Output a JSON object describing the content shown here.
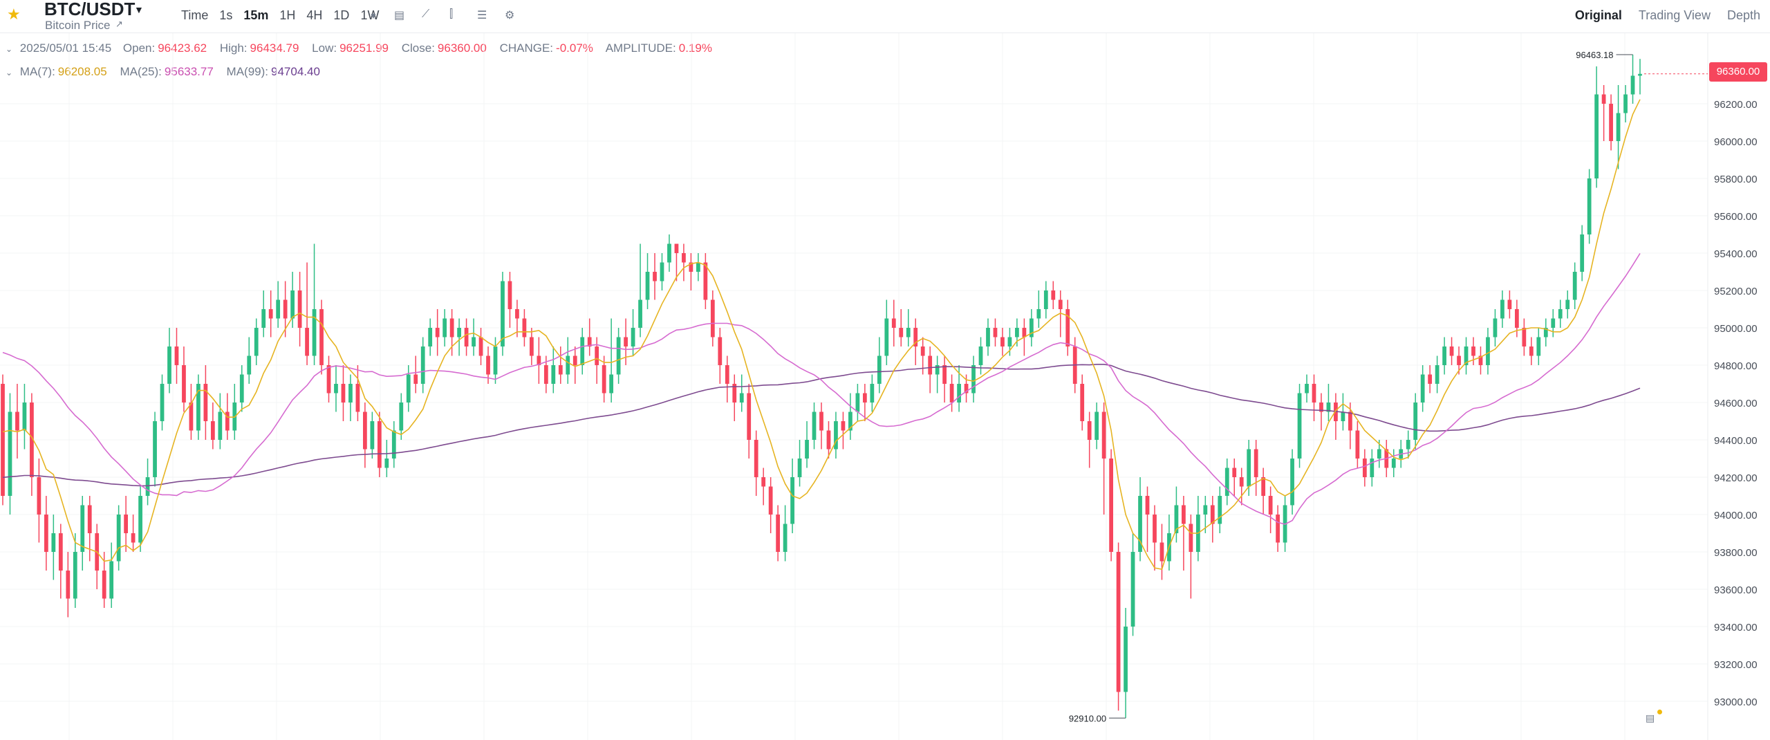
{
  "header": {
    "pair": "BTC/USDT",
    "subtitle": "Bitcoin Price",
    "intervals": [
      "Time",
      "1s",
      "15m",
      "1H",
      "4H",
      "1D",
      "1W"
    ],
    "active_interval": "15m",
    "views": [
      "Original",
      "Trading View",
      "Depth"
    ],
    "active_view": "Original"
  },
  "ohlc": {
    "date": "2025/05/01 15:45",
    "open_label": "Open:",
    "open": "96423.62",
    "high_label": "High:",
    "high": "96434.79",
    "low_label": "Low:",
    "low": "96251.99",
    "close_label": "Close:",
    "close": "96360.00",
    "change_label": "CHANGE:",
    "change": "-0.07%",
    "amplitude_label": "AMPLITUDE:",
    "amplitude": "0.19%"
  },
  "ma": {
    "ma7_label": "MA(7):",
    "ma7": "96208.05",
    "ma25_label": "MA(25):",
    "ma25": "95633.77",
    "ma99_label": "MA(99):",
    "ma99": "94704.40"
  },
  "colors": {
    "up": "#2ebd85",
    "down": "#f6465d",
    "ma7": "#e6b422",
    "ma25": "#d66bd0",
    "ma99": "#7d4a8f",
    "grid": "#f3f4f6"
  },
  "chart_data": {
    "type": "candlestick",
    "y_axis_ticks": [
      "96200.00",
      "96000.00",
      "95800.00",
      "95600.00",
      "95400.00",
      "95200.00",
      "95000.00",
      "94800.00",
      "94600.00",
      "94400.00",
      "94200.00",
      "94000.00",
      "93800.00",
      "93600.00",
      "93400.00",
      "93200.00",
      "93000.00"
    ],
    "ylim": [
      92860,
      96560
    ],
    "current_price": "96360.00",
    "high_marker": "96463.18",
    "low_marker": "92910.00",
    "candles": [
      [
        94700,
        94100,
        94750,
        94050
      ],
      [
        94100,
        94550,
        94650,
        94000
      ],
      [
        94550,
        94450,
        94700,
        94300
      ],
      [
        94450,
        94600,
        94700,
        94350
      ],
      [
        94600,
        94200,
        94650,
        94100
      ],
      [
        94200,
        94000,
        94300,
        93850
      ],
      [
        94000,
        93800,
        94100,
        93700
      ],
      [
        93800,
        93900,
        94000,
        93650
      ],
      [
        93900,
        93700,
        93950,
        93550
      ],
      [
        93700,
        93550,
        93800,
        93450
      ],
      [
        93550,
        93800,
        93900,
        93500
      ],
      [
        93800,
        94050,
        94100,
        93700
      ],
      [
        94050,
        93900,
        94100,
        93750
      ],
      [
        93900,
        93700,
        93950,
        93600
      ],
      [
        93700,
        93550,
        93800,
        93500
      ],
      [
        93550,
        93750,
        93850,
        93500
      ],
      [
        93750,
        94000,
        94050,
        93700
      ],
      [
        94000,
        93900,
        94100,
        93800
      ],
      [
        93900,
        93850,
        94000,
        93800
      ],
      [
        93850,
        94100,
        94150,
        93800
      ],
      [
        94100,
        94200,
        94300,
        94050
      ],
      [
        94200,
        94500,
        94550,
        94150
      ],
      [
        94500,
        94700,
        94750,
        94450
      ],
      [
        94700,
        94900,
        95000,
        94650
      ],
      [
        94900,
        94800,
        95000,
        94700
      ],
      [
        94800,
        94600,
        94900,
        94550
      ],
      [
        94600,
        94450,
        94700,
        94400
      ],
      [
        94450,
        94700,
        94750,
        94400
      ],
      [
        94700,
        94500,
        94800,
        94400
      ],
      [
        94500,
        94400,
        94600,
        94350
      ],
      [
        94400,
        94550,
        94650,
        94350
      ],
      [
        94550,
        94450,
        94650,
        94400
      ],
      [
        94450,
        94600,
        94700,
        94400
      ],
      [
        94600,
        94750,
        94800,
        94550
      ],
      [
        94750,
        94850,
        94950,
        94700
      ],
      [
        94850,
        95000,
        95050,
        94800
      ],
      [
        95000,
        95100,
        95200,
        94950
      ],
      [
        95100,
        95050,
        95200,
        94950
      ],
      [
        95050,
        95150,
        95250,
        95000
      ],
      [
        95150,
        95050,
        95250,
        94950
      ],
      [
        95050,
        95200,
        95300,
        95000
      ],
      [
        95200,
        95000,
        95300,
        94900
      ],
      [
        95000,
        94850,
        95350,
        94800
      ],
      [
        94850,
        95100,
        95450,
        94800
      ],
      [
        95100,
        94800,
        95150,
        94750
      ],
      [
        94800,
        94650,
        94850,
        94600
      ],
      [
        94650,
        94700,
        94800,
        94550
      ],
      [
        94700,
        94600,
        94800,
        94500
      ],
      [
        94600,
        94700,
        94750,
        94500
      ],
      [
        94700,
        94550,
        94800,
        94500
      ],
      [
        94550,
        94350,
        94600,
        94250
      ],
      [
        94350,
        94500,
        94550,
        94300
      ],
      [
        94500,
        94250,
        94550,
        94200
      ],
      [
        94250,
        94300,
        94400,
        94200
      ],
      [
        94300,
        94450,
        94500,
        94250
      ],
      [
        94450,
        94600,
        94650,
        94400
      ],
      [
        94600,
        94750,
        94800,
        94550
      ],
      [
        94750,
        94700,
        94850,
        94650
      ],
      [
        94700,
        94900,
        94950,
        94650
      ],
      [
        94900,
        95000,
        95050,
        94850
      ],
      [
        95000,
        94950,
        95100,
        94850
      ],
      [
        94950,
        95050,
        95100,
        94900
      ],
      [
        95050,
        94950,
        95100,
        94850
      ],
      [
        94950,
        95000,
        95050,
        94850
      ],
      [
        95000,
        94900,
        95050,
        94850
      ],
      [
        94900,
        94950,
        95050,
        94850
      ],
      [
        94950,
        94850,
        95000,
        94800
      ],
      [
        94850,
        94750,
        94900,
        94700
      ],
      [
        94750,
        94900,
        94950,
        94700
      ],
      [
        94900,
        95250,
        95300,
        94850
      ],
      [
        95250,
        95100,
        95300,
        95000
      ],
      [
        95100,
        95050,
        95150,
        94950
      ],
      [
        95050,
        94950,
        95100,
        94900
      ],
      [
        94950,
        94850,
        95000,
        94800
      ],
      [
        94850,
        94800,
        94950,
        94700
      ],
      [
        94800,
        94700,
        94850,
        94650
      ],
      [
        94700,
        94800,
        94900,
        94650
      ],
      [
        94800,
        94750,
        94900,
        94700
      ],
      [
        94750,
        94850,
        94950,
        94700
      ],
      [
        94850,
        94800,
        94900,
        94700
      ],
      [
        94800,
        94950,
        95000,
        94750
      ],
      [
        94950,
        94900,
        95050,
        94850
      ],
      [
        94900,
        94800,
        94950,
        94700
      ],
      [
        94800,
        94650,
        94850,
        94600
      ],
      [
        94650,
        94750,
        95050,
        94600
      ],
      [
        94750,
        94950,
        95000,
        94700
      ],
      [
        94950,
        94900,
        95050,
        94800
      ],
      [
        94900,
        95000,
        95100,
        94850
      ],
      [
        95000,
        95150,
        95450,
        94950
      ],
      [
        95150,
        95300,
        95400,
        95100
      ],
      [
        95300,
        95250,
        95400,
        95150
      ],
      [
        95250,
        95350,
        95400,
        95200
      ],
      [
        95350,
        95450,
        95500,
        95300
      ],
      [
        95450,
        95400,
        95450,
        95250
      ],
      [
        95400,
        95350,
        95450,
        95250
      ],
      [
        95350,
        95300,
        95400,
        95200
      ],
      [
        95300,
        95350,
        95400,
        95250
      ],
      [
        95350,
        95150,
        95400,
        95100
      ],
      [
        95150,
        94950,
        95200,
        94900
      ],
      [
        94950,
        94800,
        95000,
        94700
      ],
      [
        94800,
        94700,
        94850,
        94600
      ],
      [
        94700,
        94600,
        94750,
        94500
      ],
      [
        94600,
        94650,
        94750,
        94550
      ],
      [
        94650,
        94400,
        94700,
        94300
      ],
      [
        94400,
        94200,
        94450,
        94100
      ],
      [
        94200,
        94150,
        94250,
        94050
      ],
      [
        94150,
        94000,
        94200,
        93900
      ],
      [
        94000,
        93800,
        94050,
        93750
      ],
      [
        93800,
        93950,
        94050,
        93750
      ],
      [
        93950,
        94200,
        94300,
        93900
      ],
      [
        94200,
        94300,
        94400,
        94150
      ],
      [
        94300,
        94400,
        94500,
        94250
      ],
      [
        94400,
        94550,
        94600,
        94350
      ],
      [
        94550,
        94450,
        94600,
        94350
      ],
      [
        94450,
        94350,
        94500,
        94300
      ],
      [
        94350,
        94500,
        94550,
        94300
      ],
      [
        94500,
        94450,
        94550,
        94350
      ],
      [
        94450,
        94550,
        94650,
        94400
      ],
      [
        94550,
        94650,
        94700,
        94500
      ],
      [
        94650,
        94600,
        94700,
        94500
      ],
      [
        94600,
        94700,
        94750,
        94550
      ],
      [
        94700,
        94850,
        94950,
        94650
      ],
      [
        94850,
        95050,
        95150,
        94800
      ],
      [
        95050,
        95000,
        95150,
        94900
      ],
      [
        95000,
        94950,
        95100,
        94900
      ],
      [
        94950,
        95000,
        95100,
        94900
      ],
      [
        95000,
        94900,
        95050,
        94800
      ],
      [
        94900,
        94850,
        94950,
        94750
      ],
      [
        94850,
        94750,
        94900,
        94650
      ],
      [
        94750,
        94800,
        94850,
        94650
      ],
      [
        94800,
        94700,
        94850,
        94600
      ],
      [
        94700,
        94600,
        94750,
        94550
      ],
      [
        94600,
        94700,
        94800,
        94550
      ],
      [
        94700,
        94650,
        94750,
        94600
      ],
      [
        94650,
        94800,
        94850,
        94600
      ],
      [
        94800,
        94900,
        94950,
        94750
      ],
      [
        94900,
        95000,
        95050,
        94850
      ],
      [
        95000,
        94950,
        95050,
        94900
      ],
      [
        94950,
        94900,
        95000,
        94850
      ],
      [
        94900,
        94950,
        95000,
        94850
      ],
      [
        94950,
        95000,
        95050,
        94900
      ],
      [
        95000,
        94950,
        95050,
        94850
      ],
      [
        94950,
        95050,
        95100,
        94900
      ],
      [
        95050,
        95100,
        95200,
        95000
      ],
      [
        95100,
        95200,
        95250,
        95050
      ],
      [
        95200,
        95150,
        95250,
        95100
      ],
      [
        95150,
        95100,
        95200,
        94950
      ],
      [
        95100,
        94900,
        95150,
        94850
      ],
      [
        94900,
        94700,
        94950,
        94650
      ],
      [
        94700,
        94500,
        94750,
        94450
      ],
      [
        94500,
        94400,
        94550,
        94250
      ],
      [
        94400,
        94550,
        94600,
        94350
      ],
      [
        94550,
        94300,
        94600,
        94000
      ],
      [
        94300,
        93800,
        94350,
        93750
      ],
      [
        93800,
        93050,
        93850,
        92950
      ],
      [
        93050,
        93400,
        93500,
        92910
      ],
      [
        93400,
        93800,
        93900,
        93350
      ],
      [
        93800,
        94100,
        94200,
        93750
      ],
      [
        94100,
        94000,
        94150,
        93800
      ],
      [
        94000,
        93850,
        94050,
        93700
      ],
      [
        93850,
        93750,
        93950,
        93650
      ],
      [
        93750,
        93900,
        94000,
        93700
      ],
      [
        93900,
        94050,
        94150,
        93850
      ],
      [
        94050,
        93950,
        94100,
        93700
      ],
      [
        93950,
        93800,
        94000,
        93550
      ],
      [
        93800,
        94000,
        94100,
        93750
      ],
      [
        94000,
        94050,
        94100,
        93900
      ],
      [
        94050,
        93950,
        94100,
        93850
      ],
      [
        93950,
        94100,
        94150,
        93900
      ],
      [
        94100,
        94250,
        94300,
        94050
      ],
      [
        94250,
        94200,
        94300,
        94100
      ],
      [
        94200,
        94150,
        94250,
        94050
      ],
      [
        94150,
        94350,
        94400,
        94100
      ],
      [
        94350,
        94200,
        94400,
        94100
      ],
      [
        94200,
        94100,
        94250,
        94000
      ],
      [
        94100,
        94000,
        94150,
        93900
      ],
      [
        94000,
        93850,
        94050,
        93800
      ],
      [
        93850,
        94050,
        94100,
        93800
      ],
      [
        94050,
        94300,
        94350,
        94000
      ],
      [
        94300,
        94650,
        94700,
        94250
      ],
      [
        94650,
        94700,
        94750,
        94600
      ],
      [
        94700,
        94600,
        94750,
        94500
      ],
      [
        94600,
        94550,
        94650,
        94450
      ],
      [
        94550,
        94600,
        94700,
        94500
      ],
      [
        94600,
        94500,
        94650,
        94400
      ],
      [
        94500,
        94550,
        94650,
        94450
      ],
      [
        94550,
        94450,
        94600,
        94350
      ],
      [
        94450,
        94300,
        94500,
        94250
      ],
      [
        94300,
        94200,
        94350,
        94150
      ],
      [
        94200,
        94300,
        94350,
        94150
      ],
      [
        94300,
        94350,
        94400,
        94250
      ],
      [
        94350,
        94250,
        94400,
        94200
      ],
      [
        94250,
        94300,
        94350,
        94200
      ],
      [
        94300,
        94350,
        94400,
        94250
      ],
      [
        94350,
        94400,
        94450,
        94300
      ],
      [
        94400,
        94600,
        94650,
        94350
      ],
      [
        94600,
        94750,
        94800,
        94550
      ],
      [
        94750,
        94700,
        94800,
        94650
      ],
      [
        94700,
        94800,
        94850,
        94650
      ],
      [
        94800,
        94900,
        94950,
        94750
      ],
      [
        94900,
        94850,
        94950,
        94800
      ],
      [
        94850,
        94800,
        94900,
        94750
      ],
      [
        94800,
        94900,
        94950,
        94750
      ],
      [
        94900,
        94850,
        94950,
        94800
      ],
      [
        94850,
        94800,
        94900,
        94750
      ],
      [
        94800,
        94950,
        95000,
        94750
      ],
      [
        94950,
        95050,
        95100,
        94900
      ],
      [
        95050,
        95150,
        95200,
        95000
      ],
      [
        95150,
        95100,
        95200,
        95050
      ],
      [
        95100,
        95000,
        95150,
        94950
      ],
      [
        95000,
        94900,
        95050,
        94850
      ],
      [
        94900,
        94850,
        94950,
        94800
      ],
      [
        94850,
        94950,
        95000,
        94800
      ],
      [
        94950,
        95000,
        95050,
        94900
      ],
      [
        95000,
        95050,
        95100,
        94950
      ],
      [
        95050,
        95100,
        95150,
        95000
      ],
      [
        95100,
        95150,
        95200,
        95050
      ],
      [
        95150,
        95300,
        95350,
        95100
      ],
      [
        95300,
        95500,
        95550,
        95250
      ],
      [
        95500,
        95800,
        95850,
        95450
      ],
      [
        95800,
        96250,
        96400,
        95750
      ],
      [
        96250,
        96200,
        96300,
        96000
      ],
      [
        96200,
        96000,
        96250,
        95950
      ],
      [
        96000,
        96150,
        96300,
        95850
      ],
      [
        96150,
        96250,
        96300,
        96100
      ],
      [
        96250,
        96350,
        96463.18,
        96200
      ],
      [
        96350,
        96360,
        96440,
        96250
      ]
    ]
  }
}
